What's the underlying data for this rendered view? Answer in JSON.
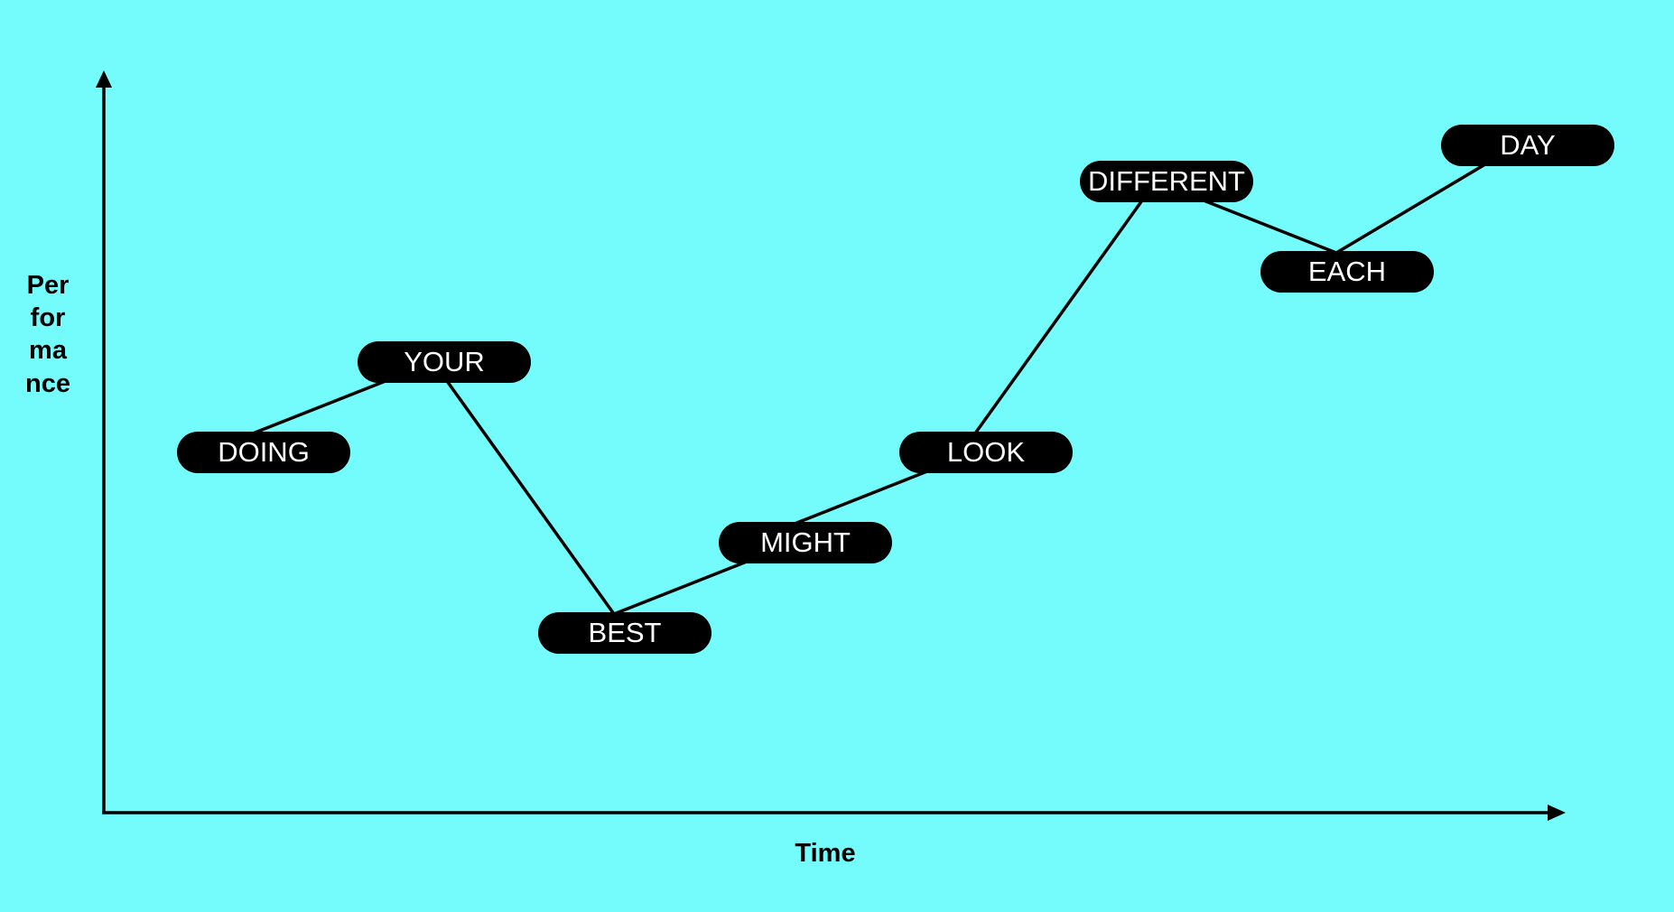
{
  "colors": {
    "background": "#74fcfc",
    "pill": "#000000",
    "pill_text": "#ffffff",
    "line": "#000000"
  },
  "axes": {
    "x_label": "Time",
    "y_label": "Performance"
  },
  "chart_data": {
    "type": "line",
    "xlabel": "Time",
    "ylabel": "Performance",
    "ylim": [
      0,
      6
    ],
    "points": [
      {
        "label": "DOING",
        "x": 1,
        "y": 3
      },
      {
        "label": "YOUR",
        "x": 2,
        "y": 4
      },
      {
        "label": "BEST",
        "x": 3,
        "y": 1
      },
      {
        "label": "MIGHT",
        "x": 4,
        "y": 2
      },
      {
        "label": "LOOK",
        "x": 5,
        "y": 3
      },
      {
        "label": "DIFFERENT",
        "x": 6,
        "y": 6
      },
      {
        "label": "EACH",
        "x": 7,
        "y": 5
      },
      {
        "label": "DAY",
        "x": 8,
        "y": 6.4
      }
    ]
  }
}
